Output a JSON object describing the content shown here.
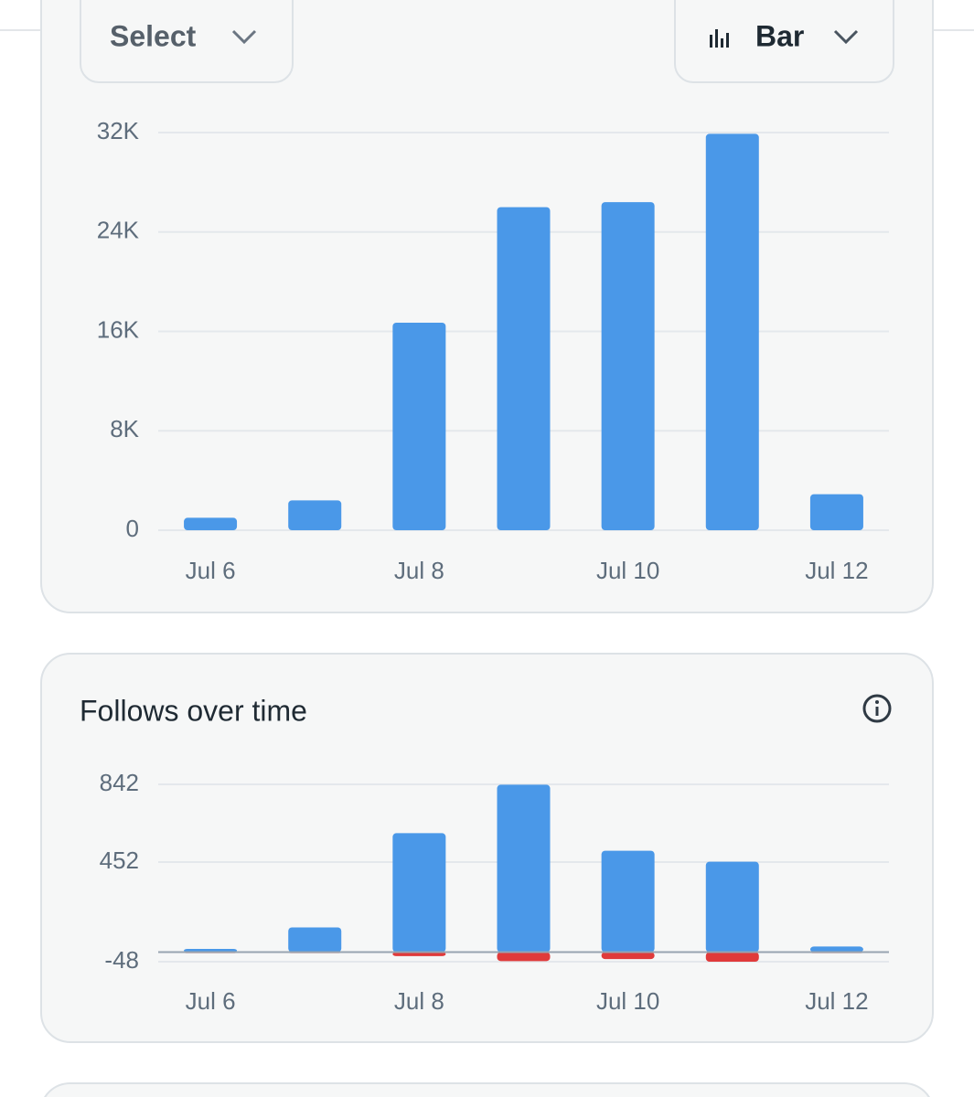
{
  "controls": {
    "select": "Select",
    "view": "Bar"
  },
  "chart_data": [
    {
      "type": "bar",
      "categories": [
        "Jul 6",
        null,
        "Jul 8",
        null,
        "Jul 10",
        null,
        "Jul 12"
      ],
      "series": [
        {
          "color": "#4a98e8",
          "values": [
            1000,
            2400,
            16700,
            26000,
            26400,
            31900,
            2900
          ]
        }
      ],
      "ylim": [
        0,
        32000
      ],
      "yticks": [
        0,
        {
          "value": 8000,
          "label": "8K"
        },
        {
          "value": 16000,
          "label": "16K"
        },
        {
          "value": 24000,
          "label": "24K"
        },
        {
          "value": 32000,
          "label": "32K"
        }
      ],
      "grid": true
    },
    {
      "type": "bar",
      "title": "Follows over time",
      "categories": [
        "Jul 6",
        null,
        "Jul 8",
        null,
        "Jul 10",
        null,
        "Jul 12"
      ],
      "series": [
        {
          "color": "#4a98e8",
          "values": [
            16,
            124,
            597,
            840,
            509,
            454,
            28
          ]
        },
        {
          "color": "#e03a3a",
          "values": [
            -5,
            -5,
            -20,
            -45,
            -35,
            -48,
            -5
          ]
        }
      ],
      "ylim": [
        -48,
        842
      ],
      "yticks": [
        -48,
        452,
        842
      ],
      "grid": true
    }
  ]
}
